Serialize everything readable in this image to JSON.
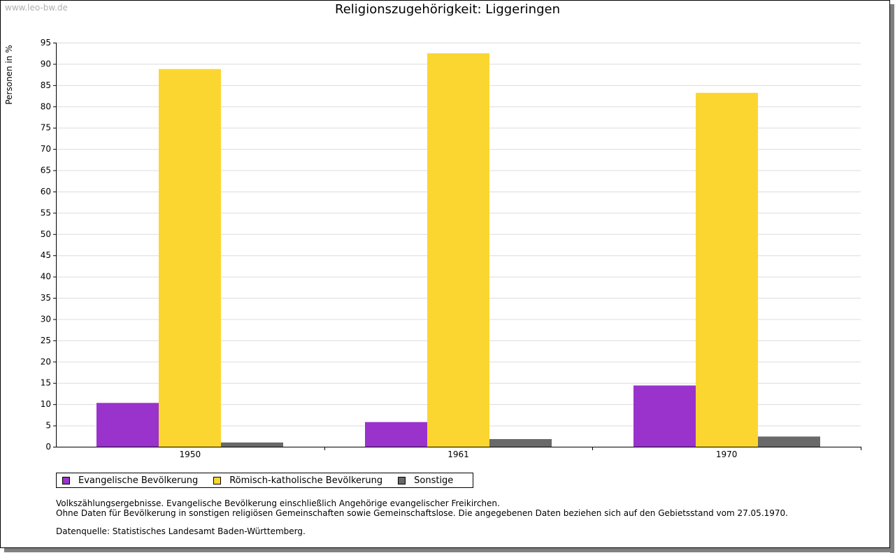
{
  "watermark": "www.leo-bw.de",
  "chart_data": {
    "type": "bar",
    "title": "Religionszugehörigkeit: Liggeringen",
    "xlabel": "",
    "ylabel": "Personen in %",
    "ylim": [
      0,
      95
    ],
    "yticks": [
      0,
      5,
      10,
      15,
      20,
      25,
      30,
      35,
      40,
      45,
      50,
      55,
      60,
      65,
      70,
      75,
      80,
      85,
      90,
      95
    ],
    "categories": [
      "1950",
      "1961",
      "1970"
    ],
    "series": [
      {
        "name": "Evangelische Bevölkerung",
        "color": "#9933cc",
        "values": [
          10.3,
          5.8,
          14.4
        ]
      },
      {
        "name": "Römisch-katholische Bevölkerung",
        "color": "#fcd630",
        "values": [
          88.8,
          92.5,
          83.2
        ]
      },
      {
        "name": "Sonstige",
        "color": "#696969",
        "values": [
          1.0,
          1.8,
          2.4
        ]
      }
    ],
    "grid": true,
    "legend_position": "bottom-left"
  },
  "notes": {
    "line1": "Volkszählungsergebnisse. Evangelische Bevölkerung einschließlich Angehörige evangelischer Freikirchen.",
    "line2": "Ohne Daten für Bevölkerung in sonstigen religiösen Gemeinschaften sowie Gemeinschaftslose. Die angegebenen Daten beziehen sich auf den Gebietsstand vom 27.05.1970.",
    "source": "Datenquelle: Statistisches Landesamt Baden-Württemberg."
  }
}
